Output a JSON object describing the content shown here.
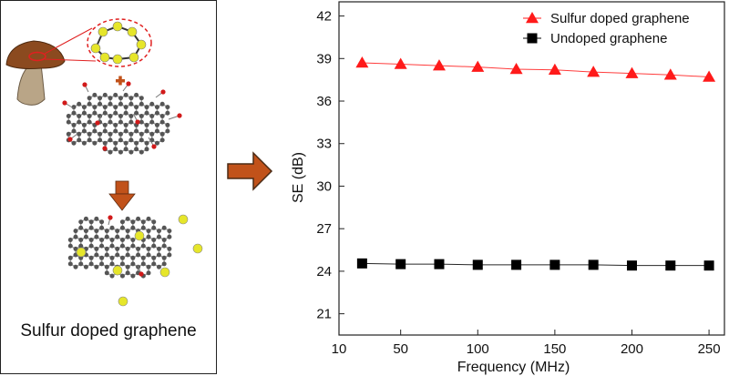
{
  "scheme": {
    "caption": "Sulfur doped graphene"
  },
  "colors": {
    "sulfur": "#e6e62a",
    "carbon": "#555555",
    "oxygen": "#d11a1a",
    "arrow": "#c1521a",
    "series_sulfur": "#ff1a1a",
    "series_undoped": "#000000"
  },
  "chart_data": {
    "type": "line",
    "xlabel": "Frequency (MHz)",
    "ylabel": "SE (dB)",
    "xlim": [
      10,
      260
    ],
    "ylim": [
      19.5,
      43
    ],
    "x_ticks": [
      10,
      50,
      100,
      150,
      200,
      250
    ],
    "y_ticks": [
      21,
      24,
      27,
      30,
      33,
      36,
      39,
      42
    ],
    "x_tick_labels": [
      "10",
      "50",
      "100",
      "150",
      "200",
      "250"
    ],
    "y_tick_labels": [
      "21",
      "24",
      "27",
      "30",
      "33",
      "36",
      "39",
      "42"
    ],
    "x": [
      25,
      50,
      75,
      100,
      125,
      150,
      175,
      200,
      225,
      250
    ],
    "legend_position": "top-right",
    "series": [
      {
        "name": "Sulfur doped graphene",
        "marker": "triangle",
        "values": [
          38.7,
          38.6,
          38.5,
          38.4,
          38.25,
          38.2,
          38.05,
          37.95,
          37.85,
          37.7
        ]
      },
      {
        "name": "Undoped graphene",
        "marker": "square",
        "values": [
          24.55,
          24.5,
          24.5,
          24.45,
          24.45,
          24.45,
          24.45,
          24.4,
          24.4,
          24.4
        ]
      }
    ]
  }
}
